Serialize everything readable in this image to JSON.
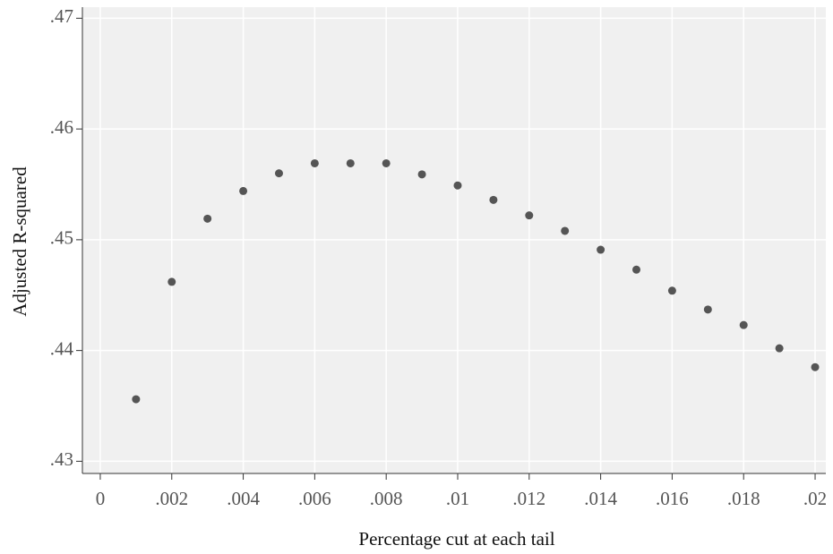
{
  "chart_data": {
    "type": "scatter",
    "x_label": "Percentage cut at each tail",
    "y_label": "Adjusted R-squared",
    "x": [
      0.001,
      0.002,
      0.003,
      0.004,
      0.005,
      0.006,
      0.007,
      0.008,
      0.009,
      0.01,
      0.011,
      0.012,
      0.013,
      0.014,
      0.015,
      0.016,
      0.017,
      0.018,
      0.019,
      0.02
    ],
    "values": [
      0.4356,
      0.4462,
      0.4519,
      0.4544,
      0.456,
      0.4569,
      0.4569,
      0.4569,
      0.4559,
      0.4549,
      0.4536,
      0.4522,
      0.4508,
      0.4491,
      0.4473,
      0.4454,
      0.4437,
      0.4423,
      0.4402,
      0.4385
    ],
    "color": "#555555",
    "xlim": [
      -0.0005,
      0.0203
    ],
    "ylim": [
      0.4289,
      0.471
    ],
    "xticks": [
      0,
      {
        "value": 0.002,
        "label": ".002"
      },
      {
        "value": 0.004,
        "label": ".004"
      },
      {
        "value": 0.006,
        "label": ".006"
      },
      {
        "value": 0.008,
        "label": ".008"
      },
      {
        "value": 0.01,
        "label": ".01"
      },
      {
        "value": 0.012,
        "label": ".012"
      },
      {
        "value": 0.014,
        "label": ".014"
      },
      {
        "value": 0.016,
        "label": ".016"
      },
      {
        "value": 0.018,
        "label": ".018"
      },
      {
        "value": 0.02,
        "label": ".02"
      }
    ],
    "yticks": [
      {
        "value": 0.43,
        "label": ".43"
      },
      {
        "value": 0.44,
        "label": ".44"
      },
      {
        "value": 0.45,
        "label": ".45"
      },
      {
        "value": 0.46,
        "label": ".46"
      },
      {
        "value": 0.47,
        "label": ".47"
      }
    ],
    "grid": true
  }
}
